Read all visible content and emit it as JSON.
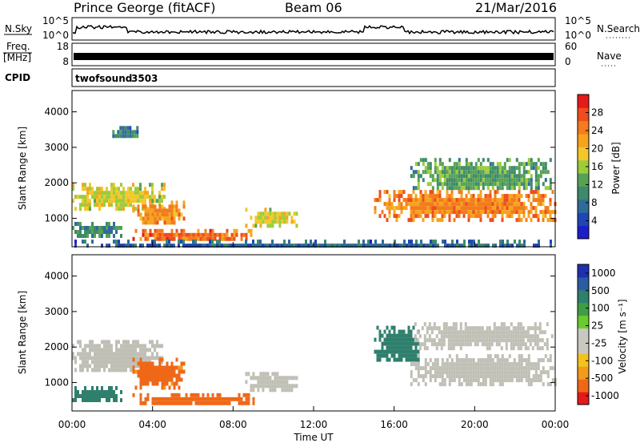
{
  "header": {
    "station": "Prince George (fitACF)",
    "beam": "Beam 06",
    "date": "21/Mar/2016"
  },
  "noise_panel": {
    "left_label": "N.Sky",
    "right_label": "N.Search",
    "left_ticks": [
      "10^5",
      "10^0"
    ],
    "right_ticks": [
      "10^5",
      "10^0"
    ]
  },
  "freq_panel": {
    "left_label_top": "Freq.",
    "left_label_unit": "[MHz]",
    "right_label": "Nave",
    "left_ticks": [
      "18",
      "8"
    ],
    "right_ticks": [
      "60",
      "0"
    ]
  },
  "cpid_panel": {
    "label": "CPID",
    "program": "twofsound",
    "id": "3503"
  },
  "colors": {
    "power_scale": [
      "#1d1dcc",
      "#1e46b4",
      "#2f6b9a",
      "#3e8a6a",
      "#55a255",
      "#9ccc3a",
      "#f2c72a",
      "#f6a41e",
      "#f47c1c",
      "#ef4d1d",
      "#e61a1a"
    ],
    "velocity_scale": [
      "#1f2fb0",
      "#2a5ca6",
      "#2f7f6d",
      "#3f9e45",
      "#6acb2e",
      "#c8c8c0",
      "#c8c8c0",
      "#f3c21f",
      "#f39b1a",
      "#ef6818",
      "#e61a1a"
    ],
    "ground_scatter": "#bfbfb5"
  },
  "chart_data": [
    {
      "type": "heatmap",
      "name": "power",
      "xlabel": "",
      "ylabel": "Slant Range [km]",
      "yticks": [
        "1000",
        "2000",
        "3000",
        "4000"
      ],
      "ylim": [
        200,
        4600
      ],
      "xlim": [
        0,
        24
      ],
      "colorbar": {
        "label": "Power [dB]",
        "ticks": [
          "4",
          "8",
          "12",
          "16",
          "20",
          "24",
          "28"
        ],
        "range": [
          0,
          32
        ]
      },
      "regions": [
        {
          "t0": 0.0,
          "t1": 4.6,
          "r0": 1300,
          "r1": 2000,
          "value": 18
        },
        {
          "t0": 3.0,
          "t1": 5.6,
          "r0": 900,
          "r1": 1500,
          "value": 24
        },
        {
          "t0": 3.0,
          "t1": 9.0,
          "r0": 400,
          "r1": 700,
          "value": 27
        },
        {
          "t0": 0.0,
          "t1": 2.4,
          "r0": 500,
          "r1": 900,
          "value": 10
        },
        {
          "t0": 8.6,
          "t1": 11.2,
          "r0": 800,
          "r1": 1300,
          "value": 18
        },
        {
          "t0": 15.0,
          "t1": 24.0,
          "r0": 1000,
          "r1": 1800,
          "value": 25
        },
        {
          "t0": 16.8,
          "t1": 23.8,
          "r0": 1800,
          "r1": 2700,
          "value": 12
        },
        {
          "t0": 2.0,
          "t1": 3.2,
          "r0": 3300,
          "r1": 3600,
          "value": 8
        },
        {
          "t0": 0.0,
          "t1": 24.0,
          "r0": 200,
          "r1": 400,
          "value": 6
        }
      ]
    },
    {
      "type": "heatmap",
      "name": "velocity",
      "xlabel": "Time UT",
      "ylabel": "Slant Range [km]",
      "xticks": [
        "00:00",
        "04:00",
        "08:00",
        "12:00",
        "16:00",
        "20:00",
        "00:00"
      ],
      "yticks": [
        "1000",
        "2000",
        "3000",
        "4000"
      ],
      "ylim": [
        200,
        4600
      ],
      "xlim": [
        0,
        24
      ],
      "colorbar": {
        "label": "Velocity [m s⁻¹]",
        "ticks": [
          "1000",
          "500",
          "100",
          "25",
          "-25",
          "-100",
          "-500",
          "-1000"
        ],
        "range": [
          -1000,
          1000
        ]
      },
      "regions": [
        {
          "t0": 0.0,
          "t1": 4.6,
          "r0": 1300,
          "r1": 2200,
          "value": 0
        },
        {
          "t0": 3.0,
          "t1": 5.6,
          "r0": 900,
          "r1": 1700,
          "value": -150
        },
        {
          "t0": 3.0,
          "t1": 9.0,
          "r0": 400,
          "r1": 700,
          "value": -200
        },
        {
          "t0": 0.0,
          "t1": 2.4,
          "r0": 500,
          "r1": 900,
          "value": 60
        },
        {
          "t0": 8.6,
          "t1": 11.2,
          "r0": 800,
          "r1": 1300,
          "value": 0
        },
        {
          "t0": 16.8,
          "t1": 24.0,
          "r0": 1000,
          "r1": 1800,
          "value": 0
        },
        {
          "t0": 15.0,
          "t1": 17.2,
          "r0": 1600,
          "r1": 2600,
          "value": 80
        },
        {
          "t0": 17.0,
          "t1": 23.8,
          "r0": 2000,
          "r1": 2700,
          "value": 0
        }
      ]
    }
  ]
}
